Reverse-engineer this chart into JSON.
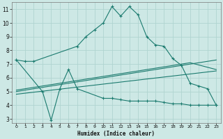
{
  "xlabel": "Humidex (Indice chaleur)",
  "xlim": [
    -0.5,
    23.5
  ],
  "ylim": [
    2.7,
    11.5
  ],
  "yticks": [
    3,
    4,
    5,
    6,
    7,
    8,
    9,
    10,
    11
  ],
  "xticks": [
    0,
    1,
    2,
    3,
    4,
    5,
    6,
    7,
    8,
    9,
    10,
    11,
    12,
    13,
    14,
    15,
    16,
    17,
    18,
    19,
    20,
    21,
    22,
    23
  ],
  "background_color": "#cde8e5",
  "grid_color": "#b0d4d0",
  "line_color": "#1a7a6e",
  "line1_marked": {
    "x": [
      0,
      1,
      2,
      7,
      8,
      9,
      10,
      11,
      12,
      13,
      14,
      15,
      16,
      17,
      18,
      19,
      20,
      21,
      22,
      23
    ],
    "y": [
      7.3,
      7.2,
      7.2,
      8.3,
      9.0,
      9.5,
      10.0,
      11.2,
      10.5,
      11.2,
      10.6,
      9.0,
      8.4,
      8.3,
      7.4,
      6.9,
      5.6,
      5.4,
      5.2,
      4.0
    ]
  },
  "line2_marked": {
    "x": [
      0,
      3,
      4,
      5,
      6,
      7,
      10,
      11,
      12,
      13,
      14,
      15,
      16,
      17,
      18,
      19,
      20,
      21,
      22,
      23
    ],
    "y": [
      7.3,
      5.0,
      2.9,
      5.2,
      6.6,
      5.2,
      4.5,
      4.5,
      4.4,
      4.3,
      4.3,
      4.3,
      4.3,
      4.2,
      4.1,
      4.1,
      4.0,
      4.0,
      4.0,
      4.0
    ]
  },
  "line3_plain": {
    "x": [
      0,
      23
    ],
    "y": [
      5.0,
      7.3
    ]
  },
  "line4_plain": {
    "x": [
      0,
      20,
      23
    ],
    "y": [
      5.1,
      7.1,
      6.6
    ]
  },
  "line5_plain": {
    "x": [
      0,
      23
    ],
    "y": [
      4.8,
      6.5
    ]
  }
}
